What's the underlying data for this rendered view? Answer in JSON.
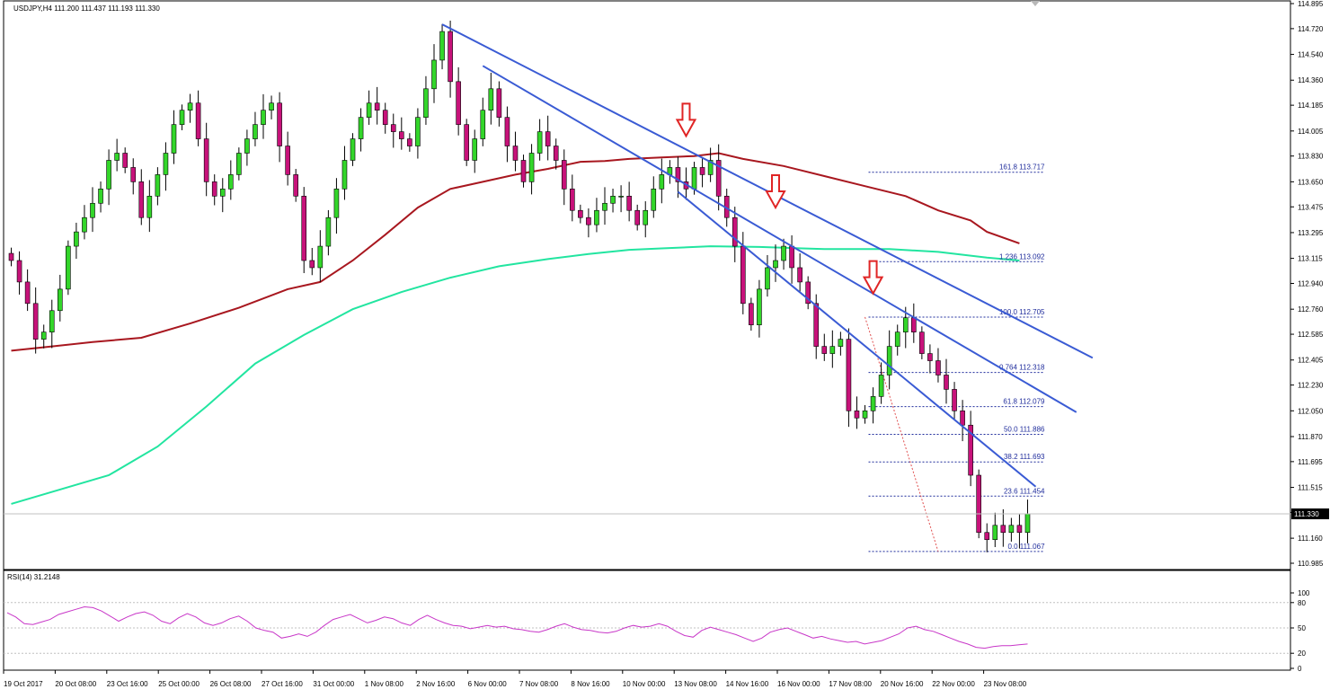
{
  "header": {
    "symbol_info": "USDJPY,H4  111.200 111.437 111.193 111.330"
  },
  "indicator": {
    "label": "RSI(14) 31.2148",
    "levels": [
      80,
      50,
      20
    ],
    "axis_labels": [
      "100",
      "80",
      "50",
      "20",
      "0"
    ],
    "color": "#c837c8"
  },
  "colors": {
    "bull": "#33d62a",
    "bear": "#c7127a",
    "ma_fast": "#a8171f",
    "ma_slow": "#22e5a0",
    "trendline": "#3a5bd4",
    "fib": "#1f2c9c",
    "arrow": "#e02525"
  },
  "chart_data": {
    "type": "candlestick",
    "symbol": "USDJPY",
    "timeframe": "H4",
    "last_price": "111.330",
    "ylim": [
      110.985,
      114.895
    ],
    "price_axis_labels": [
      "114.895",
      "114.720",
      "114.540",
      "114.360",
      "114.185",
      "114.005",
      "113.830",
      "113.650",
      "113.475",
      "113.295",
      "113.115",
      "112.940",
      "112.760",
      "112.585",
      "112.405",
      "112.230",
      "112.050",
      "111.870",
      "111.695",
      "111.515",
      "111.340",
      "111.160",
      "110.985"
    ],
    "time_axis_labels": [
      "19 Oct 2017",
      "20 Oct 08:00",
      "23 Oct 16:00",
      "25 Oct 00:00",
      "26 Oct 08:00",
      "27 Oct 16:00",
      "31 Oct 00:00",
      "1 Nov 08:00",
      "2 Nov 16:00",
      "6 Nov 00:00",
      "7 Nov 08:00",
      "8 Nov 16:00",
      "10 Nov 00:00",
      "13 Nov 08:00",
      "14 Nov 16:00",
      "16 Nov 00:00",
      "17 Nov 08:00",
      "20 Nov 16:00",
      "22 Nov 00:00",
      "23 Nov 08:00"
    ],
    "closes": [
      113.1,
      112.95,
      112.8,
      112.55,
      112.6,
      112.75,
      112.9,
      113.2,
      113.3,
      113.4,
      113.5,
      113.6,
      113.8,
      113.85,
      113.75,
      113.65,
      113.4,
      113.55,
      113.7,
      113.85,
      114.05,
      114.15,
      114.2,
      113.95,
      113.65,
      113.55,
      113.6,
      113.7,
      113.85,
      113.95,
      114.05,
      114.15,
      114.2,
      113.9,
      113.7,
      113.55,
      113.1,
      113.05,
      113.2,
      113.4,
      113.6,
      113.8,
      113.95,
      114.1,
      114.2,
      114.15,
      114.05,
      114.0,
      113.95,
      113.9,
      114.1,
      114.3,
      114.5,
      114.7,
      114.35,
      114.05,
      113.8,
      113.95,
      114.15,
      114.3,
      114.1,
      113.9,
      113.8,
      113.65,
      113.85,
      114.0,
      113.9,
      113.8,
      113.6,
      113.45,
      113.4,
      113.35,
      113.45,
      113.5,
      113.55,
      113.55,
      113.45,
      113.35,
      113.45,
      113.6,
      113.7,
      113.75,
      113.65,
      113.6,
      113.75,
      113.7,
      113.8,
      113.55,
      113.4,
      113.2,
      112.8,
      112.65,
      112.9,
      113.05,
      113.1,
      113.2,
      113.05,
      112.95,
      112.8,
      112.5,
      112.45,
      112.5,
      112.55,
      112.05,
      112.0,
      112.05,
      112.15,
      112.3,
      112.5,
      112.6,
      112.7,
      112.6,
      112.45,
      112.4,
      112.3,
      112.2,
      112.05,
      111.95,
      111.6,
      111.2,
      111.15,
      111.25,
      111.2,
      111.25,
      111.2,
      111.33
    ],
    "ma_fast_points": [
      [
        0,
        112.47
      ],
      [
        5,
        112.5
      ],
      [
        10,
        112.53
      ],
      [
        16,
        112.56
      ],
      [
        22,
        112.66
      ],
      [
        28,
        112.77
      ],
      [
        34,
        112.9
      ],
      [
        38,
        112.95
      ],
      [
        42,
        113.1
      ],
      [
        46,
        113.28
      ],
      [
        50,
        113.47
      ],
      [
        54,
        113.6
      ],
      [
        58,
        113.65
      ],
      [
        62,
        113.7
      ],
      [
        66,
        113.74
      ],
      [
        70,
        113.79
      ],
      [
        73,
        113.795
      ],
      [
        76,
        113.81
      ],
      [
        80,
        113.82
      ],
      [
        84,
        113.83
      ],
      [
        87,
        113.85
      ],
      [
        90,
        113.81
      ],
      [
        95,
        113.76
      ],
      [
        100,
        113.69
      ],
      [
        105,
        113.62
      ],
      [
        110,
        113.55
      ],
      [
        114,
        113.45
      ],
      [
        118,
        113.38
      ],
      [
        120,
        113.3
      ],
      [
        124,
        113.22
      ]
    ],
    "ma_slow_points": [
      [
        0,
        111.4
      ],
      [
        6,
        111.5
      ],
      [
        12,
        111.6
      ],
      [
        18,
        111.8
      ],
      [
        24,
        112.08
      ],
      [
        30,
        112.38
      ],
      [
        36,
        112.58
      ],
      [
        42,
        112.76
      ],
      [
        48,
        112.88
      ],
      [
        54,
        112.98
      ],
      [
        60,
        113.06
      ],
      [
        66,
        113.11
      ],
      [
        71,
        113.145
      ],
      [
        76,
        113.175
      ],
      [
        80,
        113.185
      ],
      [
        86,
        113.2
      ],
      [
        92,
        113.195
      ],
      [
        100,
        113.18
      ],
      [
        108,
        113.18
      ],
      [
        114,
        113.16
      ],
      [
        120,
        113.12
      ],
      [
        124,
        113.1
      ]
    ],
    "trendlines": [
      [
        [
          53,
          114.75
        ],
        [
          133,
          112.42
        ]
      ],
      [
        [
          58,
          114.46
        ],
        [
          131,
          112.04
        ]
      ],
      [
        [
          82,
          113.58
        ],
        [
          126,
          111.52
        ]
      ]
    ],
    "resistance_arrows": [
      [
        83,
        113.97
      ],
      [
        94,
        113.47
      ],
      [
        106,
        112.87
      ]
    ],
    "fib_swing": [
      [
        105,
        112.705
      ],
      [
        114,
        111.067
      ]
    ],
    "fibonacci": {
      "x_range": [
        105,
        126
      ],
      "levels": [
        {
          "label": "161.8 113.717",
          "price": 113.717
        },
        {
          "label": "1.236 113.092",
          "price": 113.092
        },
        {
          "label": "100.0 112.705",
          "price": 112.705
        },
        {
          "label": "0.764 112.318",
          "price": 112.318
        },
        {
          "label": "61.8 112.079",
          "price": 112.079
        },
        {
          "label": "50.0 111.886",
          "price": 111.886
        },
        {
          "label": "38.2 111.693",
          "price": 111.693
        },
        {
          "label": "23.6 111.454",
          "price": 111.454
        },
        {
          "label": "0.0 111.067",
          "price": 111.067
        }
      ]
    },
    "rsi_values": [
      68,
      63,
      55,
      54,
      57,
      60,
      66,
      69,
      72,
      75,
      74,
      70,
      64,
      58,
      63,
      67,
      69,
      65,
      58,
      55,
      62,
      67,
      63,
      56,
      53,
      56,
      61,
      64,
      58,
      50,
      47,
      45,
      38,
      40,
      43,
      40,
      45,
      53,
      60,
      63,
      66,
      61,
      56,
      59,
      63,
      61,
      56,
      53,
      60,
      65,
      60,
      56,
      53,
      52,
      49,
      51,
      53,
      51,
      52,
      49,
      48,
      46,
      45,
      48,
      52,
      55,
      51,
      48,
      47,
      45,
      44,
      46,
      50,
      53,
      51,
      52,
      55,
      52,
      46,
      41,
      39,
      47,
      51,
      48,
      45,
      42,
      38,
      34,
      38,
      45,
      48,
      50,
      46,
      42,
      38,
      40,
      37,
      35,
      33,
      34,
      31,
      33,
      35,
      39,
      43,
      50,
      52,
      48,
      46,
      42,
      38,
      34,
      31,
      27,
      26,
      28,
      29,
      29,
      30,
      31
    ],
    "rsi_ylim": [
      0,
      100
    ]
  }
}
